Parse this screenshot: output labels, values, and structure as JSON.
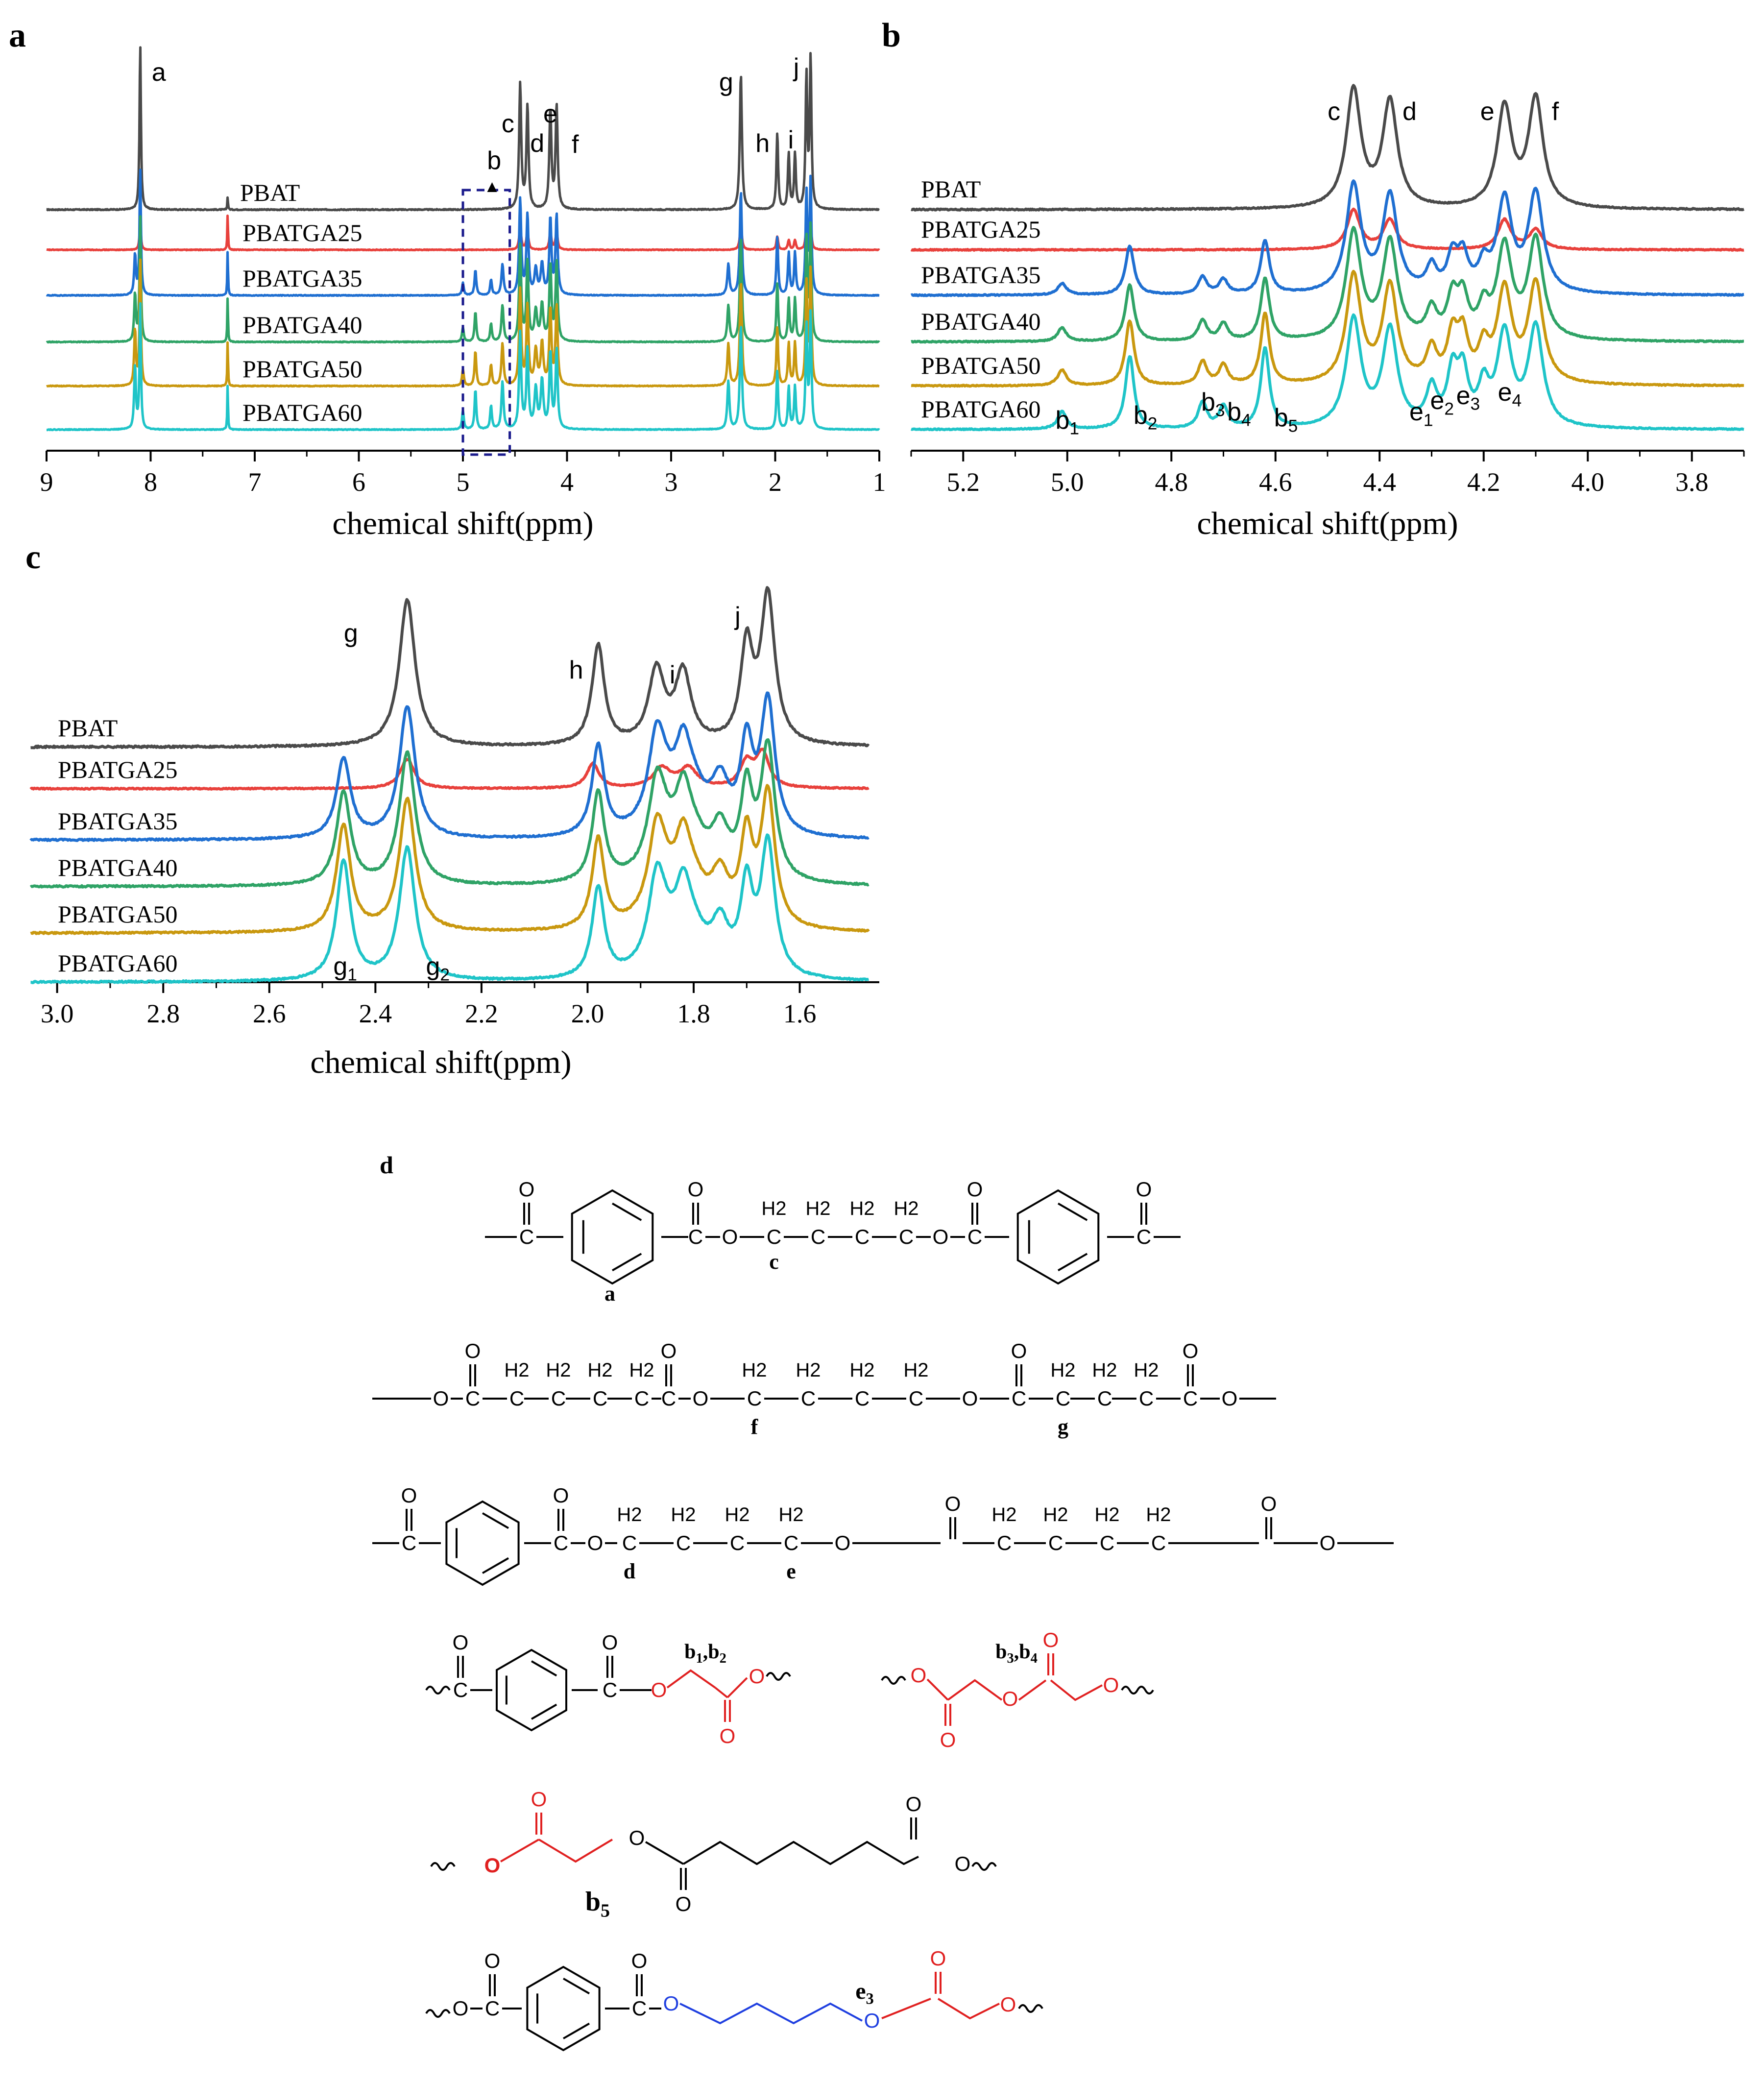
{
  "panels": {
    "a": {
      "letter": "a",
      "chart_data": {
        "type": "line",
        "xlabel": "chemical shift(ppm)",
        "xlim": [
          9,
          1
        ],
        "x_ticks": [
          9,
          8,
          7,
          6,
          5,
          4,
          3,
          2,
          1
        ],
        "series": [
          {
            "name": "PBAT",
            "color": "#4a4a4a"
          },
          {
            "name": "PBATGA25",
            "color": "#e8413c"
          },
          {
            "name": "PBATGA35",
            "color": "#1f6fd1"
          },
          {
            "name": "PBATGA40",
            "color": "#2fa366"
          },
          {
            "name": "PBATGA50",
            "color": "#c9980f"
          },
          {
            "name": "PBATGA60",
            "color": "#1fc4c8"
          }
        ],
        "peak_labels": [
          {
            "text": "a",
            "x": 8.1
          },
          {
            "text": "b",
            "x": 4.7
          },
          {
            "text": "c",
            "x": 4.45
          },
          {
            "text": "d",
            "x": 4.38
          },
          {
            "text": "e",
            "x": 4.16
          },
          {
            "text": "f",
            "x": 4.1
          },
          {
            "text": "g",
            "x": 2.33
          },
          {
            "text": "h",
            "x": 1.98
          },
          {
            "text": "i",
            "x": 1.85
          },
          {
            "text": "j",
            "x": 1.68
          }
        ]
      }
    },
    "b": {
      "letter": "b",
      "chart_data": {
        "type": "line",
        "xlabel": "chemical shift(ppm)",
        "xlim": [
          5.3,
          3.7
        ],
        "x_ticks": [
          "5.2",
          "5.0",
          "4.8",
          "4.6",
          "4.4",
          "4.2",
          "4.0",
          "3.8"
        ],
        "series": [
          {
            "name": "PBAT",
            "color": "#4a4a4a"
          },
          {
            "name": "PBATGA25",
            "color": "#e8413c"
          },
          {
            "name": "PBATGA35",
            "color": "#1f6fd1"
          },
          {
            "name": "PBATGA40",
            "color": "#2fa366"
          },
          {
            "name": "PBATGA50",
            "color": "#c9980f"
          },
          {
            "name": "PBATGA60",
            "color": "#1fc4c8"
          }
        ],
        "peak_labels": [
          {
            "text": "c",
            "x": 4.45
          },
          {
            "text": "d",
            "x": 4.38
          },
          {
            "text": "e",
            "x": 4.16
          },
          {
            "text": "f",
            "x": 4.1
          },
          {
            "text": "b",
            "sub": "1",
            "x": 5.0
          },
          {
            "text": "b",
            "sub": "2",
            "x": 4.85
          },
          {
            "text": "b",
            "sub": "3",
            "x": 4.72
          },
          {
            "text": "b",
            "sub": "4",
            "x": 4.67
          },
          {
            "text": "b",
            "sub": "5",
            "x": 4.58
          },
          {
            "text": "e",
            "sub": "1",
            "x": 4.32
          },
          {
            "text": "e",
            "sub": "2",
            "x": 4.28
          },
          {
            "text": "e",
            "sub": "3",
            "x": 4.23
          },
          {
            "text": "e",
            "sub": "4",
            "x": 4.15
          }
        ]
      }
    },
    "c": {
      "letter": "c",
      "chart_data": {
        "type": "line",
        "xlabel": "chemical shift(ppm)",
        "xlim": [
          3.02,
          1.45
        ],
        "x_ticks": [
          "3.0",
          "2.8",
          "2.6",
          "2.4",
          "2.2",
          "2.0",
          "1.8",
          "1.6"
        ],
        "series": [
          {
            "name": "PBAT",
            "color": "#4a4a4a"
          },
          {
            "name": "PBATGA25",
            "color": "#e8413c"
          },
          {
            "name": "PBATGA35",
            "color": "#1f6fd1"
          },
          {
            "name": "PBATGA40",
            "color": "#2fa366"
          },
          {
            "name": "PBATGA50",
            "color": "#c9980f"
          },
          {
            "name": "PBATGA60",
            "color": "#1fc4c8"
          }
        ],
        "peak_labels": [
          {
            "text": "g",
            "x": 2.34
          },
          {
            "text": "h",
            "x": 1.98
          },
          {
            "text": "i",
            "x": 1.84
          },
          {
            "text": "j",
            "x": 1.68
          },
          {
            "text": "g",
            "sub": "1",
            "x": 2.42
          },
          {
            "text": "g",
            "sub": "2",
            "x": 2.31
          }
        ]
      }
    },
    "d": {
      "letter": "d",
      "labels": {
        "a": "a",
        "c": "c",
        "f": "f",
        "g": "g",
        "d": "d",
        "e": "e",
        "h2": "H2",
        "o": "O",
        "b12": [
          "b",
          "1",
          ",b",
          "2"
        ],
        "b34": [
          "b",
          "3",
          ",b",
          "4"
        ],
        "b5": [
          "b",
          "5"
        ],
        "e3": [
          "e",
          "3"
        ]
      }
    }
  }
}
